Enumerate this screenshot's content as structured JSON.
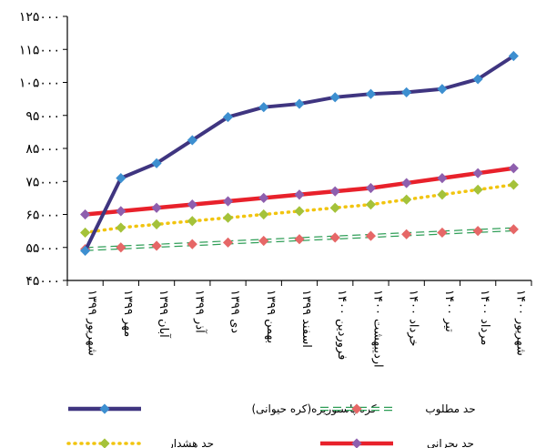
{
  "chart_data": {
    "type": "line",
    "title": "",
    "xlabel": "",
    "ylabel": "",
    "ylim": [
      45000,
      125000
    ],
    "yticks": [
      "۱۲۵۰۰۰",
      "۱۱۵۰۰۰",
      "۱۰۵۰۰۰",
      "۹۵۰۰۰",
      "۸۵۰۰۰",
      "۷۵۰۰۰",
      "۶۵۰۰۰",
      "۵۵۰۰۰",
      "۴۵۰۰۰"
    ],
    "ytick_values": [
      125000,
      115000,
      105000,
      95000,
      85000,
      75000,
      65000,
      55000,
      45000
    ],
    "categories": [
      "شهریور ۱۳۹۹",
      "مهر ۱۳۹۹",
      "آبان ۱۳۹۹",
      "آذر ۱۳۹۹",
      "دی ۱۳۹۹",
      "بهمن ۱۳۹۹",
      "اسفند ۱۳۹۹",
      "فروردین ۱۴۰۰",
      "اردیبهشت ۱۴۰۰",
      "خرداد ۱۴۰۰",
      "تیر ۱۴۰۰",
      "مرداد ۱۴۰۰",
      "شهریور ۱۴۰۰"
    ],
    "grid": false,
    "legend_position": "bottom",
    "series": [
      {
        "name": "کره پاستوریزه(کره حیوانی)",
        "color": "#3f3580",
        "marker": "#3d8fd0",
        "values": [
          54000,
          76000,
          80500,
          87500,
          94500,
          97500,
          98500,
          100500,
          101500,
          102000,
          103000,
          106000,
          113000
        ]
      },
      {
        "name": "حد بحرانی",
        "color": "#e8212b",
        "marker": "#8e5fae",
        "values": [
          65000,
          66000,
          67000,
          68000,
          69000,
          70000,
          71000,
          72000,
          73000,
          74500,
          76000,
          77500,
          79000
        ]
      },
      {
        "name": "حد هشدار",
        "color": "#f1c40f",
        "marker": "#a4c23a",
        "values": [
          59500,
          61000,
          62000,
          63000,
          64000,
          65000,
          66000,
          67000,
          68000,
          69500,
          71000,
          72500,
          74000
        ]
      },
      {
        "name": "حد مطلوب",
        "color": "#2f9e57",
        "marker": "#e66767",
        "values": [
          54500,
          55000,
          55500,
          56000,
          56500,
          57000,
          57500,
          58000,
          58500,
          59000,
          59500,
          60000,
          60500
        ]
      }
    ],
    "legend": [
      {
        "name": "کره پاستوریزه(کره حیوانی)",
        "style": "solid-thick",
        "color": "#3f3580",
        "marker": "#3d8fd0"
      },
      {
        "name": "حد مطلوب",
        "style": "dashed-hollow",
        "color": "#2f9e57",
        "marker": "#e66767"
      },
      {
        "name": "حد هشدار",
        "style": "dotted",
        "color": "#f1c40f",
        "marker": "#a4c23a"
      },
      {
        "name": "حد بحرانی",
        "style": "solid-thick",
        "color": "#e8212b",
        "marker": "#8e5fae"
      }
    ]
  }
}
